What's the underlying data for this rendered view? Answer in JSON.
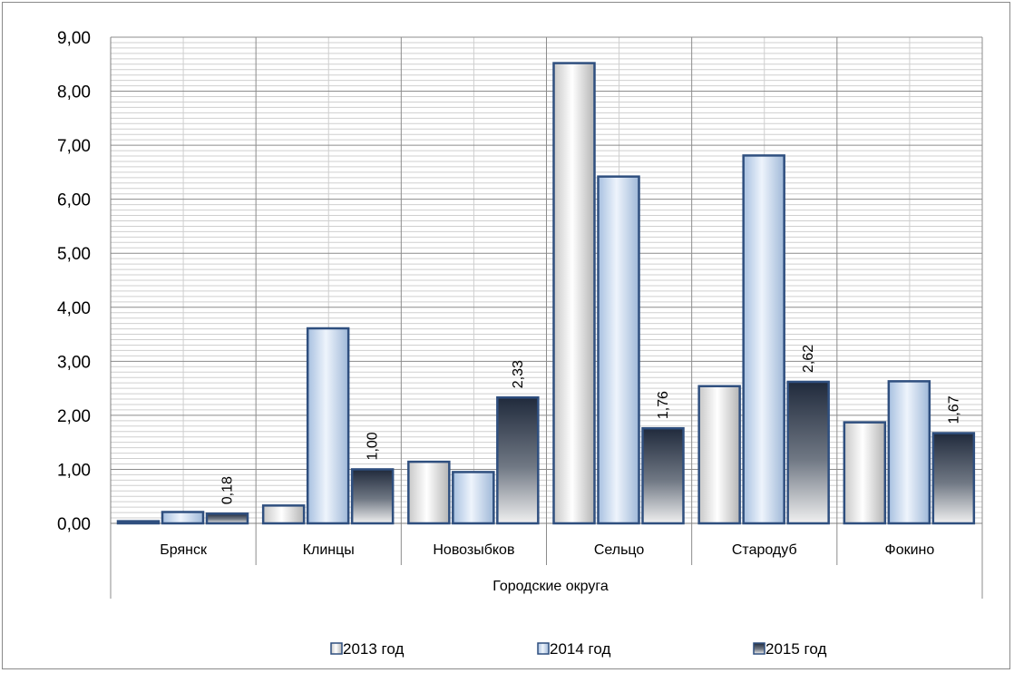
{
  "chart_data": {
    "type": "bar",
    "categories": [
      "Брянск",
      "Клинцы",
      "Новозыбков",
      "Сельцо",
      "Стародуб",
      "Фокино"
    ],
    "series": [
      {
        "name": "2013 год",
        "values": [
          0.04,
          0.33,
          1.14,
          8.52,
          2.54,
          1.87
        ],
        "style": "silver"
      },
      {
        "name": "2014 год",
        "values": [
          0.21,
          3.61,
          0.95,
          6.42,
          6.81,
          2.63
        ],
        "style": "blue"
      },
      {
        "name": "2015 год",
        "values": [
          0.18,
          1.0,
          2.33,
          1.76,
          2.62,
          1.67
        ],
        "style": "dark"
      }
    ],
    "data_labels_series": 2,
    "data_labels": [
      "0,18",
      "1,00",
      "2,33",
      "1,76",
      "2,62",
      "1,67"
    ],
    "yticks": [
      "0,00",
      "1,00",
      "2,00",
      "3,00",
      "4,00",
      "5,00",
      "6,00",
      "7,00",
      "8,00",
      "9,00"
    ],
    "xlabel": "Городские округа",
    "ylim": [
      0,
      9
    ],
    "grid": true,
    "legend_position": "bottom",
    "colors": {
      "grid_major": "#8c8c8c",
      "grid_minor": "#cfcfcf",
      "bar_border": "#2f4f7f"
    }
  }
}
